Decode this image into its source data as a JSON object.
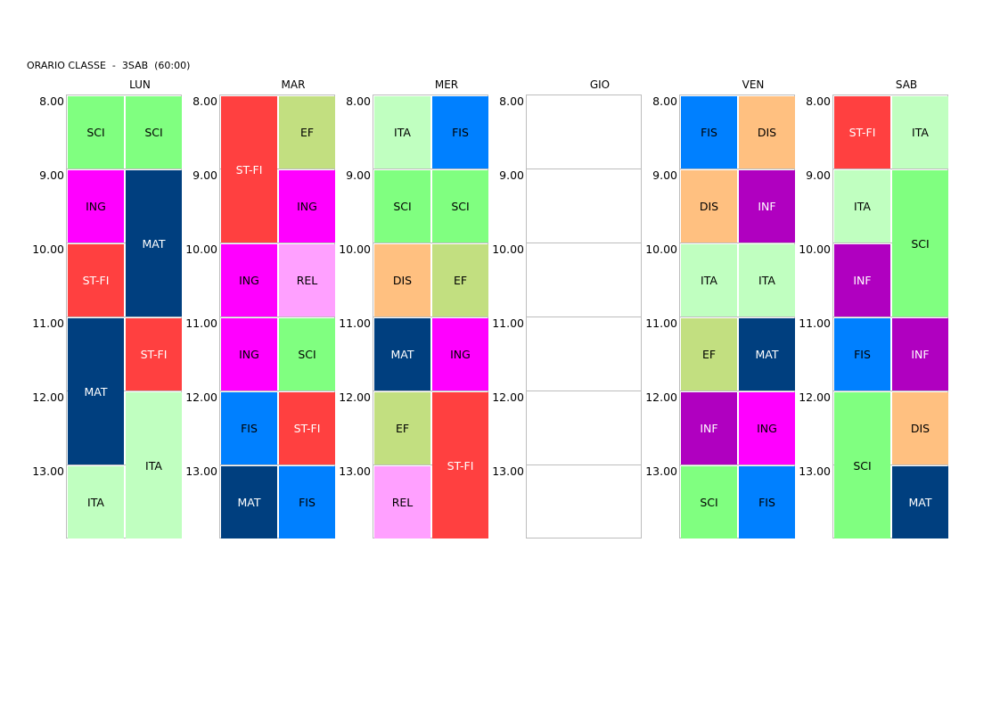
{
  "title": "ORARIO CLASSE  -  3SAB  (60:00)",
  "times": [
    "8.00",
    "9.00",
    "10.00",
    "11.00",
    "12.00",
    "13.00"
  ],
  "colors": {
    "SCI": "#80ff80",
    "ING": "#ff00ff",
    "ST-FI": "#ff4040",
    "MAT": "#003f7f",
    "ITA": "#c0ffc0",
    "EF": "#c2df80",
    "REL": "#ffa0ff",
    "FIS": "#0080ff",
    "DIS": "#ffc080",
    "INF": "#b000c0"
  },
  "light_text": [
    "MAT",
    "ST-FI",
    "INF"
  ],
  "days": [
    {
      "name": "LUN",
      "lessons": [
        {
          "subject": "SCI",
          "col": 0,
          "start": 0,
          "span": 1
        },
        {
          "subject": "SCI",
          "col": 1,
          "start": 0,
          "span": 1
        },
        {
          "subject": "ING",
          "col": 0,
          "start": 1,
          "span": 1
        },
        {
          "subject": "MAT",
          "col": 1,
          "start": 1,
          "span": 2
        },
        {
          "subject": "ST-FI",
          "col": 0,
          "start": 2,
          "span": 1
        },
        {
          "subject": "MAT",
          "col": 0,
          "start": 3,
          "span": 2
        },
        {
          "subject": "ST-FI",
          "col": 1,
          "start": 3,
          "span": 1
        },
        {
          "subject": "ITA",
          "col": 1,
          "start": 4,
          "span": 2
        },
        {
          "subject": "ITA",
          "col": 0,
          "start": 5,
          "span": 1
        }
      ]
    },
    {
      "name": "MAR",
      "lessons": [
        {
          "subject": "ST-FI",
          "col": 0,
          "start": 0,
          "span": 2
        },
        {
          "subject": "EF",
          "col": 1,
          "start": 0,
          "span": 1
        },
        {
          "subject": "ING",
          "col": 1,
          "start": 1,
          "span": 1
        },
        {
          "subject": "ING",
          "col": 0,
          "start": 2,
          "span": 1
        },
        {
          "subject": "REL",
          "col": 1,
          "start": 2,
          "span": 1
        },
        {
          "subject": "ING",
          "col": 0,
          "start": 3,
          "span": 1
        },
        {
          "subject": "SCI",
          "col": 1,
          "start": 3,
          "span": 1
        },
        {
          "subject": "FIS",
          "col": 0,
          "start": 4,
          "span": 1
        },
        {
          "subject": "ST-FI",
          "col": 1,
          "start": 4,
          "span": 1
        },
        {
          "subject": "MAT",
          "col": 0,
          "start": 5,
          "span": 1
        },
        {
          "subject": "FIS",
          "col": 1,
          "start": 5,
          "span": 1
        }
      ]
    },
    {
      "name": "MER",
      "lessons": [
        {
          "subject": "ITA",
          "col": 0,
          "start": 0,
          "span": 1
        },
        {
          "subject": "FIS",
          "col": 1,
          "start": 0,
          "span": 1
        },
        {
          "subject": "SCI",
          "col": 0,
          "start": 1,
          "span": 1
        },
        {
          "subject": "SCI",
          "col": 1,
          "start": 1,
          "span": 1
        },
        {
          "subject": "DIS",
          "col": 0,
          "start": 2,
          "span": 1
        },
        {
          "subject": "EF",
          "col": 1,
          "start": 2,
          "span": 1
        },
        {
          "subject": "MAT",
          "col": 0,
          "start": 3,
          "span": 1
        },
        {
          "subject": "ING",
          "col": 1,
          "start": 3,
          "span": 1
        },
        {
          "subject": "EF",
          "col": 0,
          "start": 4,
          "span": 1
        },
        {
          "subject": "ST-FI",
          "col": 1,
          "start": 4,
          "span": 2
        },
        {
          "subject": "REL",
          "col": 0,
          "start": 5,
          "span": 1
        }
      ]
    },
    {
      "name": "GIO",
      "lessons": []
    },
    {
      "name": "VEN",
      "lessons": [
        {
          "subject": "FIS",
          "col": 0,
          "start": 0,
          "span": 1
        },
        {
          "subject": "DIS",
          "col": 1,
          "start": 0,
          "span": 1
        },
        {
          "subject": "DIS",
          "col": 0,
          "start": 1,
          "span": 1
        },
        {
          "subject": "INF",
          "col": 1,
          "start": 1,
          "span": 1
        },
        {
          "subject": "ITA",
          "col": 0,
          "start": 2,
          "span": 1
        },
        {
          "subject": "ITA",
          "col": 1,
          "start": 2,
          "span": 1
        },
        {
          "subject": "EF",
          "col": 0,
          "start": 3,
          "span": 1
        },
        {
          "subject": "MAT",
          "col": 1,
          "start": 3,
          "span": 1
        },
        {
          "subject": "INF",
          "col": 0,
          "start": 4,
          "span": 1
        },
        {
          "subject": "ING",
          "col": 1,
          "start": 4,
          "span": 1
        },
        {
          "subject": "SCI",
          "col": 0,
          "start": 5,
          "span": 1
        },
        {
          "subject": "FIS",
          "col": 1,
          "start": 5,
          "span": 1
        }
      ]
    },
    {
      "name": "SAB",
      "lessons": [
        {
          "subject": "ST-FI",
          "col": 0,
          "start": 0,
          "span": 1
        },
        {
          "subject": "ITA",
          "col": 1,
          "start": 0,
          "span": 1
        },
        {
          "subject": "ITA",
          "col": 0,
          "start": 1,
          "span": 1
        },
        {
          "subject": "SCI",
          "col": 1,
          "start": 1,
          "span": 2
        },
        {
          "subject": "INF",
          "col": 0,
          "start": 2,
          "span": 1
        },
        {
          "subject": "FIS",
          "col": 0,
          "start": 3,
          "span": 1
        },
        {
          "subject": "INF",
          "col": 1,
          "start": 3,
          "span": 1
        },
        {
          "subject": "SCI",
          "col": 0,
          "start": 4,
          "span": 2
        },
        {
          "subject": "DIS",
          "col": 1,
          "start": 4,
          "span": 1
        },
        {
          "subject": "MAT",
          "col": 1,
          "start": 5,
          "span": 1
        }
      ]
    }
  ]
}
